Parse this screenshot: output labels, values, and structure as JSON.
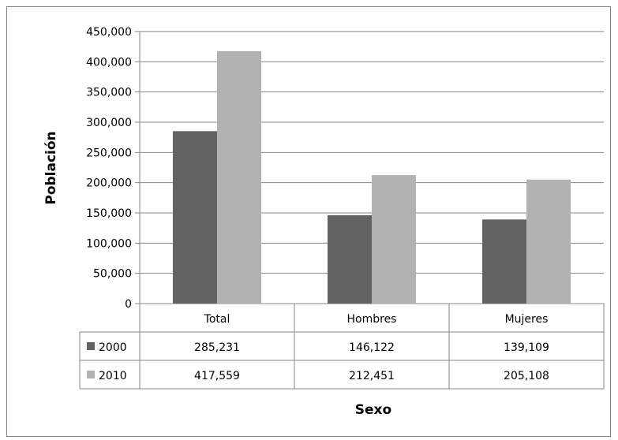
{
  "chart_data": {
    "type": "bar",
    "title": "",
    "xlabel": "Sexo",
    "ylabel": "Población",
    "ylim": [
      0,
      450000
    ],
    "yticks": [
      0,
      50000,
      100000,
      150000,
      200000,
      250000,
      300000,
      350000,
      400000,
      450000
    ],
    "ytick_labels": [
      "0",
      "50,000",
      "100,000",
      "150,000",
      "200,000",
      "250,000",
      "300,000",
      "350,000",
      "400,000",
      "450,000"
    ],
    "categories": [
      "Total",
      "Hombres",
      "Mujeres"
    ],
    "grid": true,
    "legend": "data-table",
    "series": [
      {
        "name": "2000",
        "color": "#626262",
        "values": [
          285231,
          146122,
          139109
        ],
        "labels": [
          "285,231",
          "146,122",
          "139,109"
        ]
      },
      {
        "name": "2010",
        "color": "#b2b2b2",
        "values": [
          417559,
          212451,
          205108
        ],
        "labels": [
          "417,559",
          "212,451",
          "205,108"
        ]
      }
    ]
  }
}
